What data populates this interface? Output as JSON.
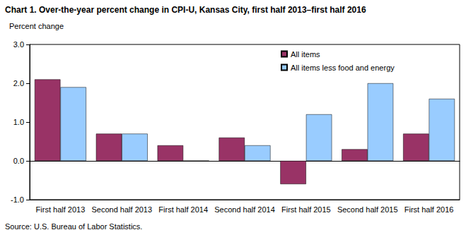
{
  "chart_data": {
    "type": "bar",
    "title": "Chart 1. Over-the-year percent change in CPI-U, Kansas City, first half 2013–first half 2016",
    "y_label": "Percent change",
    "source": "Source: U.S. Bureau of Labor Statistics.",
    "categories": [
      "First half 2013",
      "Second half 2013",
      "First half 2014",
      "Second half 2014",
      "First half 2015",
      "Second half 2015",
      "First half 2016"
    ],
    "series": [
      {
        "name": "All items",
        "color": "#993366",
        "values": [
          2.1,
          0.7,
          0.4,
          0.6,
          -0.6,
          0.3,
          0.7
        ]
      },
      {
        "name": "All items less food and energy",
        "color": "#99ccff",
        "values": [
          1.9,
          0.7,
          0.0,
          0.4,
          1.2,
          2.0,
          1.6
        ]
      }
    ],
    "ylim": [
      -1,
      3
    ],
    "yticks": [
      {
        "value": -1,
        "label": "-1.0"
      },
      {
        "value": 0,
        "label": "0.0"
      },
      {
        "value": 1,
        "label": "1.0"
      },
      {
        "value": 2,
        "label": "2.0"
      },
      {
        "value": 3,
        "label": "3.0"
      }
    ],
    "grid": false,
    "legend": "top-right"
  }
}
